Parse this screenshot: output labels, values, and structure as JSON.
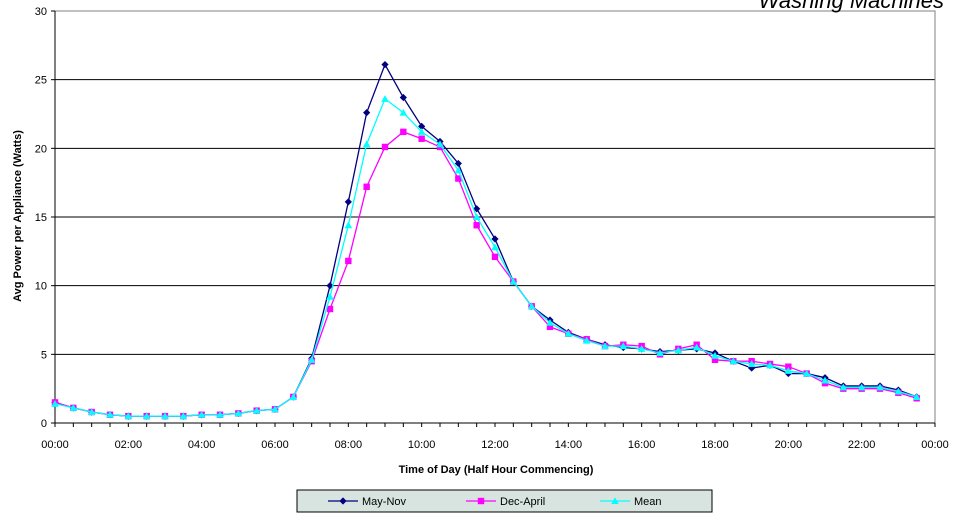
{
  "chart_data": {
    "type": "line",
    "title": "Washing Machines",
    "xlabel": "Time of Day (Half Hour Commencing)",
    "ylabel": "Avg Power per Appliance (Watts)",
    "ylim": [
      0,
      30
    ],
    "yticks": [
      "0",
      "5",
      "10",
      "15",
      "20",
      "25",
      "30"
    ],
    "xtick_labels": [
      "00:00",
      "02:00",
      "04:00",
      "06:00",
      "08:00",
      "10:00",
      "12:00",
      "14:00",
      "16:00",
      "18:00",
      "20:00",
      "22:00",
      "00:00"
    ],
    "x": [
      "00:00",
      "00:30",
      "01:00",
      "01:30",
      "02:00",
      "02:30",
      "03:00",
      "03:30",
      "04:00",
      "04:30",
      "05:00",
      "05:30",
      "06:00",
      "06:30",
      "07:00",
      "07:30",
      "08:00",
      "08:30",
      "09:00",
      "09:30",
      "10:00",
      "10:30",
      "11:00",
      "11:30",
      "12:00",
      "12:30",
      "13:00",
      "13:30",
      "14:00",
      "14:30",
      "15:00",
      "15:30",
      "16:00",
      "16:30",
      "17:00",
      "17:30",
      "18:00",
      "18:30",
      "19:00",
      "19:30",
      "20:00",
      "20:30",
      "21:00",
      "21:30",
      "22:00",
      "22:30",
      "23:00",
      "23:30"
    ],
    "grid": "horizontal",
    "legend_position": "bottom",
    "series": [
      {
        "name": "May-Nov",
        "color": "#000080",
        "marker": "diamond",
        "values": [
          1.5,
          1.1,
          0.8,
          0.6,
          0.5,
          0.5,
          0.5,
          0.5,
          0.6,
          0.6,
          0.7,
          0.9,
          1.0,
          1.9,
          4.7,
          10.0,
          16.1,
          22.6,
          26.1,
          23.7,
          21.6,
          20.5,
          18.9,
          15.6,
          13.4,
          10.3,
          8.5,
          7.5,
          6.6,
          6.1,
          5.7,
          5.5,
          5.4,
          5.2,
          5.3,
          5.4,
          5.1,
          4.5,
          4.0,
          4.2,
          3.6,
          3.6,
          3.3,
          2.7,
          2.7,
          2.7,
          2.4,
          1.9
        ]
      },
      {
        "name": "Dec-April",
        "color": "#ff00ff",
        "marker": "square",
        "values": [
          1.5,
          1.1,
          0.8,
          0.6,
          0.5,
          0.5,
          0.5,
          0.5,
          0.6,
          0.6,
          0.7,
          0.9,
          1.0,
          1.9,
          4.5,
          8.3,
          11.8,
          17.2,
          20.1,
          21.2,
          20.7,
          20.1,
          17.8,
          14.4,
          12.1,
          10.3,
          8.5,
          7.0,
          6.5,
          6.1,
          5.6,
          5.7,
          5.6,
          5.0,
          5.4,
          5.7,
          4.6,
          4.5,
          4.5,
          4.3,
          4.1,
          3.6,
          2.9,
          2.5,
          2.5,
          2.5,
          2.2,
          1.8
        ]
      },
      {
        "name": "Mean",
        "color": "#00ffff",
        "marker": "triangle",
        "values": [
          1.4,
          1.1,
          0.8,
          0.6,
          0.5,
          0.5,
          0.5,
          0.5,
          0.6,
          0.6,
          0.7,
          0.9,
          1.0,
          1.9,
          4.6,
          9.2,
          14.4,
          20.3,
          23.6,
          22.6,
          21.2,
          20.3,
          18.4,
          15.0,
          12.8,
          10.3,
          8.5,
          7.3,
          6.5,
          6.0,
          5.6,
          5.6,
          5.4,
          5.1,
          5.3,
          5.5,
          4.9,
          4.5,
          4.3,
          4.2,
          3.8,
          3.6,
          3.1,
          2.6,
          2.6,
          2.6,
          2.3,
          1.9
        ]
      }
    ]
  }
}
